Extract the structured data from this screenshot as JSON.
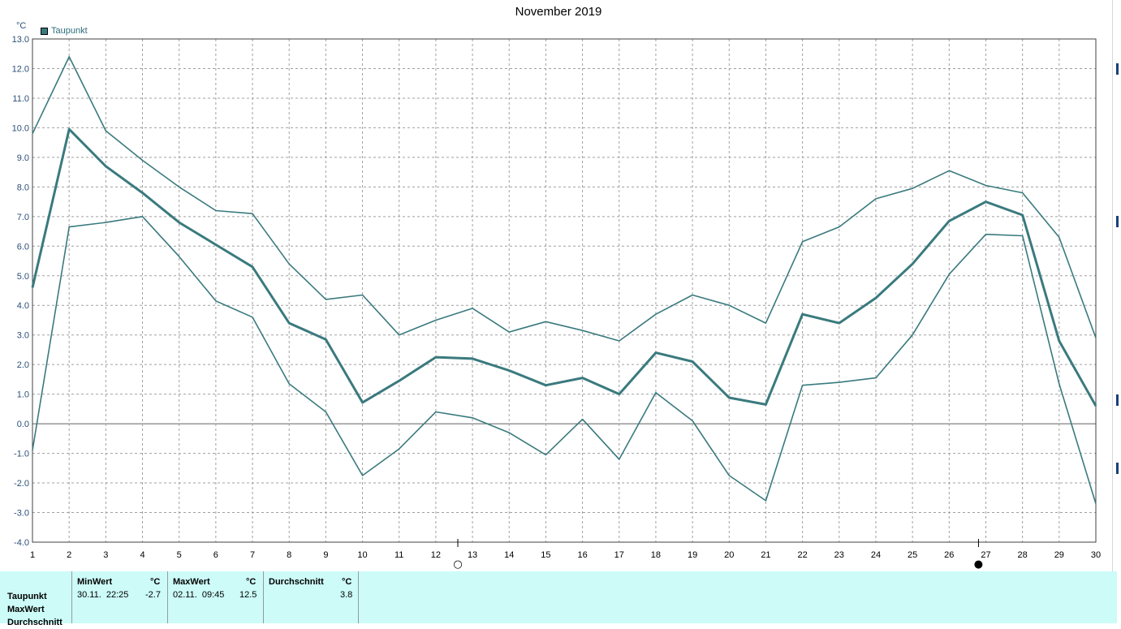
{
  "chart_data": {
    "type": "line",
    "title": "November 2019",
    "unit_label": "°C",
    "legend": [
      "Taupunkt"
    ],
    "x": [
      1,
      2,
      3,
      4,
      5,
      6,
      7,
      8,
      9,
      10,
      11,
      12,
      13,
      14,
      15,
      16,
      17,
      18,
      19,
      20,
      21,
      22,
      23,
      24,
      25,
      26,
      27,
      28,
      29,
      30
    ],
    "ylim": [
      -4.0,
      13.0
    ],
    "yticks": [
      "13.0",
      "12.0",
      "11.0",
      "10.0",
      "9.0",
      "8.0",
      "7.0",
      "6.0",
      "5.0",
      "4.0",
      "3.0",
      "2.0",
      "1.0",
      "0.0",
      "-1.0",
      "-2.0",
      "-3.0",
      "-4.0"
    ],
    "grid": true,
    "series": [
      {
        "role": "max",
        "values": [
          9.8,
          12.4,
          9.9,
          8.9,
          8.0,
          7.2,
          7.1,
          5.4,
          4.2,
          4.35,
          3.0,
          3.5,
          3.9,
          3.1,
          3.45,
          3.15,
          2.8,
          3.7,
          4.35,
          4.0,
          3.4,
          6.15,
          6.65,
          7.6,
          7.95,
          8.55,
          8.05,
          7.8,
          6.3,
          2.9
        ]
      },
      {
        "role": "avg",
        "values": [
          4.6,
          9.95,
          8.7,
          7.8,
          6.8,
          6.05,
          5.3,
          3.4,
          2.85,
          0.72,
          1.45,
          2.25,
          2.2,
          1.8,
          1.3,
          1.55,
          1.0,
          2.4,
          2.1,
          0.88,
          0.65,
          3.7,
          3.4,
          4.25,
          5.4,
          6.85,
          7.5,
          7.05,
          2.8,
          0.6
        ]
      },
      {
        "role": "min",
        "values": [
          -0.9,
          6.65,
          6.8,
          7.0,
          5.65,
          4.15,
          3.6,
          1.35,
          0.4,
          -1.75,
          -0.85,
          0.4,
          0.2,
          -0.3,
          -1.05,
          0.15,
          -1.2,
          1.05,
          0.1,
          -1.75,
          -2.6,
          1.3,
          1.4,
          1.55,
          3.0,
          5.05,
          6.4,
          6.35,
          1.35,
          -2.7
        ]
      }
    ],
    "moon_phases": [
      {
        "x": 12.6,
        "symbol": "○"
      },
      {
        "x": 26.8,
        "symbol": "●"
      }
    ]
  },
  "colors": {
    "line": "#3a7a7e",
    "grid": "#a0a0a0",
    "panel_bg": "#ccfbf8",
    "axis_text": "#2c4f7a"
  },
  "table": {
    "row_labels": [
      "Taupunkt",
      "MaxWert",
      "Durchschnitt"
    ],
    "min": {
      "header": "MinWert",
      "unit": "°C",
      "datetime": "30.11.  22:25",
      "value": "-2.7"
    },
    "max": {
      "header": "MaxWert",
      "unit": "°C",
      "datetime": "02.11.  09:45",
      "value": "12.5"
    },
    "avg": {
      "header": "Durchschnitt",
      "unit": "°C",
      "value": "3.8"
    }
  }
}
